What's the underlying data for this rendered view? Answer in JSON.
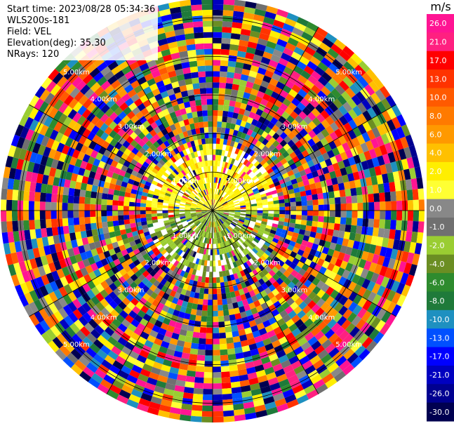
{
  "header": {
    "start_time": "Start time: 2023/08/28 05:34:36",
    "instrument": "WLS200s-181",
    "field": "Field: VEL",
    "elevation": "Elevation(deg): 35.30",
    "nrays": "NRays: 120"
  },
  "colorbar": {
    "unit": "m/s",
    "ticks": [
      "26.0",
      "21.0",
      "17.0",
      "13.0",
      "10.0",
      "8.0",
      "6.0",
      "4.0",
      "2.0",
      "1.0",
      "0.0",
      "-1.0",
      "-2.0",
      "-4.0",
      "-6.0",
      "-8.0",
      "-10.0",
      "-13.0",
      "-17.0",
      "-21.0",
      "-26.0",
      "-30.0"
    ],
    "colors": [
      "#ff1493",
      "#ff2080",
      "#ff0000",
      "#ff3300",
      "#ff5a00",
      "#ff7a00",
      "#ff9900",
      "#ffc000",
      "#ffee00",
      "#ffff33",
      "#888888",
      "#707070",
      "#9acd32",
      "#6b8e23",
      "#2e8b2e",
      "#1f7a3a",
      "#1e90c0",
      "#0050ff",
      "#0000ff",
      "#0000c0",
      "#000090",
      "#000050"
    ]
  },
  "chart_data": {
    "type": "heatmap",
    "title": "",
    "field": "VEL",
    "unit": "m/s",
    "nrays": 120,
    "elevation_deg": 35.3,
    "range_rings_km": [
      1.0,
      2.0,
      3.0,
      4.0,
      5.0
    ],
    "ring_labels": [
      "1.00km",
      "2.00km",
      "3.00km",
      "4.00km",
      "5.00km"
    ],
    "value_range": [
      -30.0,
      26.0
    ],
    "notes": "Velocity near zero (yellow/olive) close to centre; noisy values of all colors beyond ~1.5 km"
  }
}
